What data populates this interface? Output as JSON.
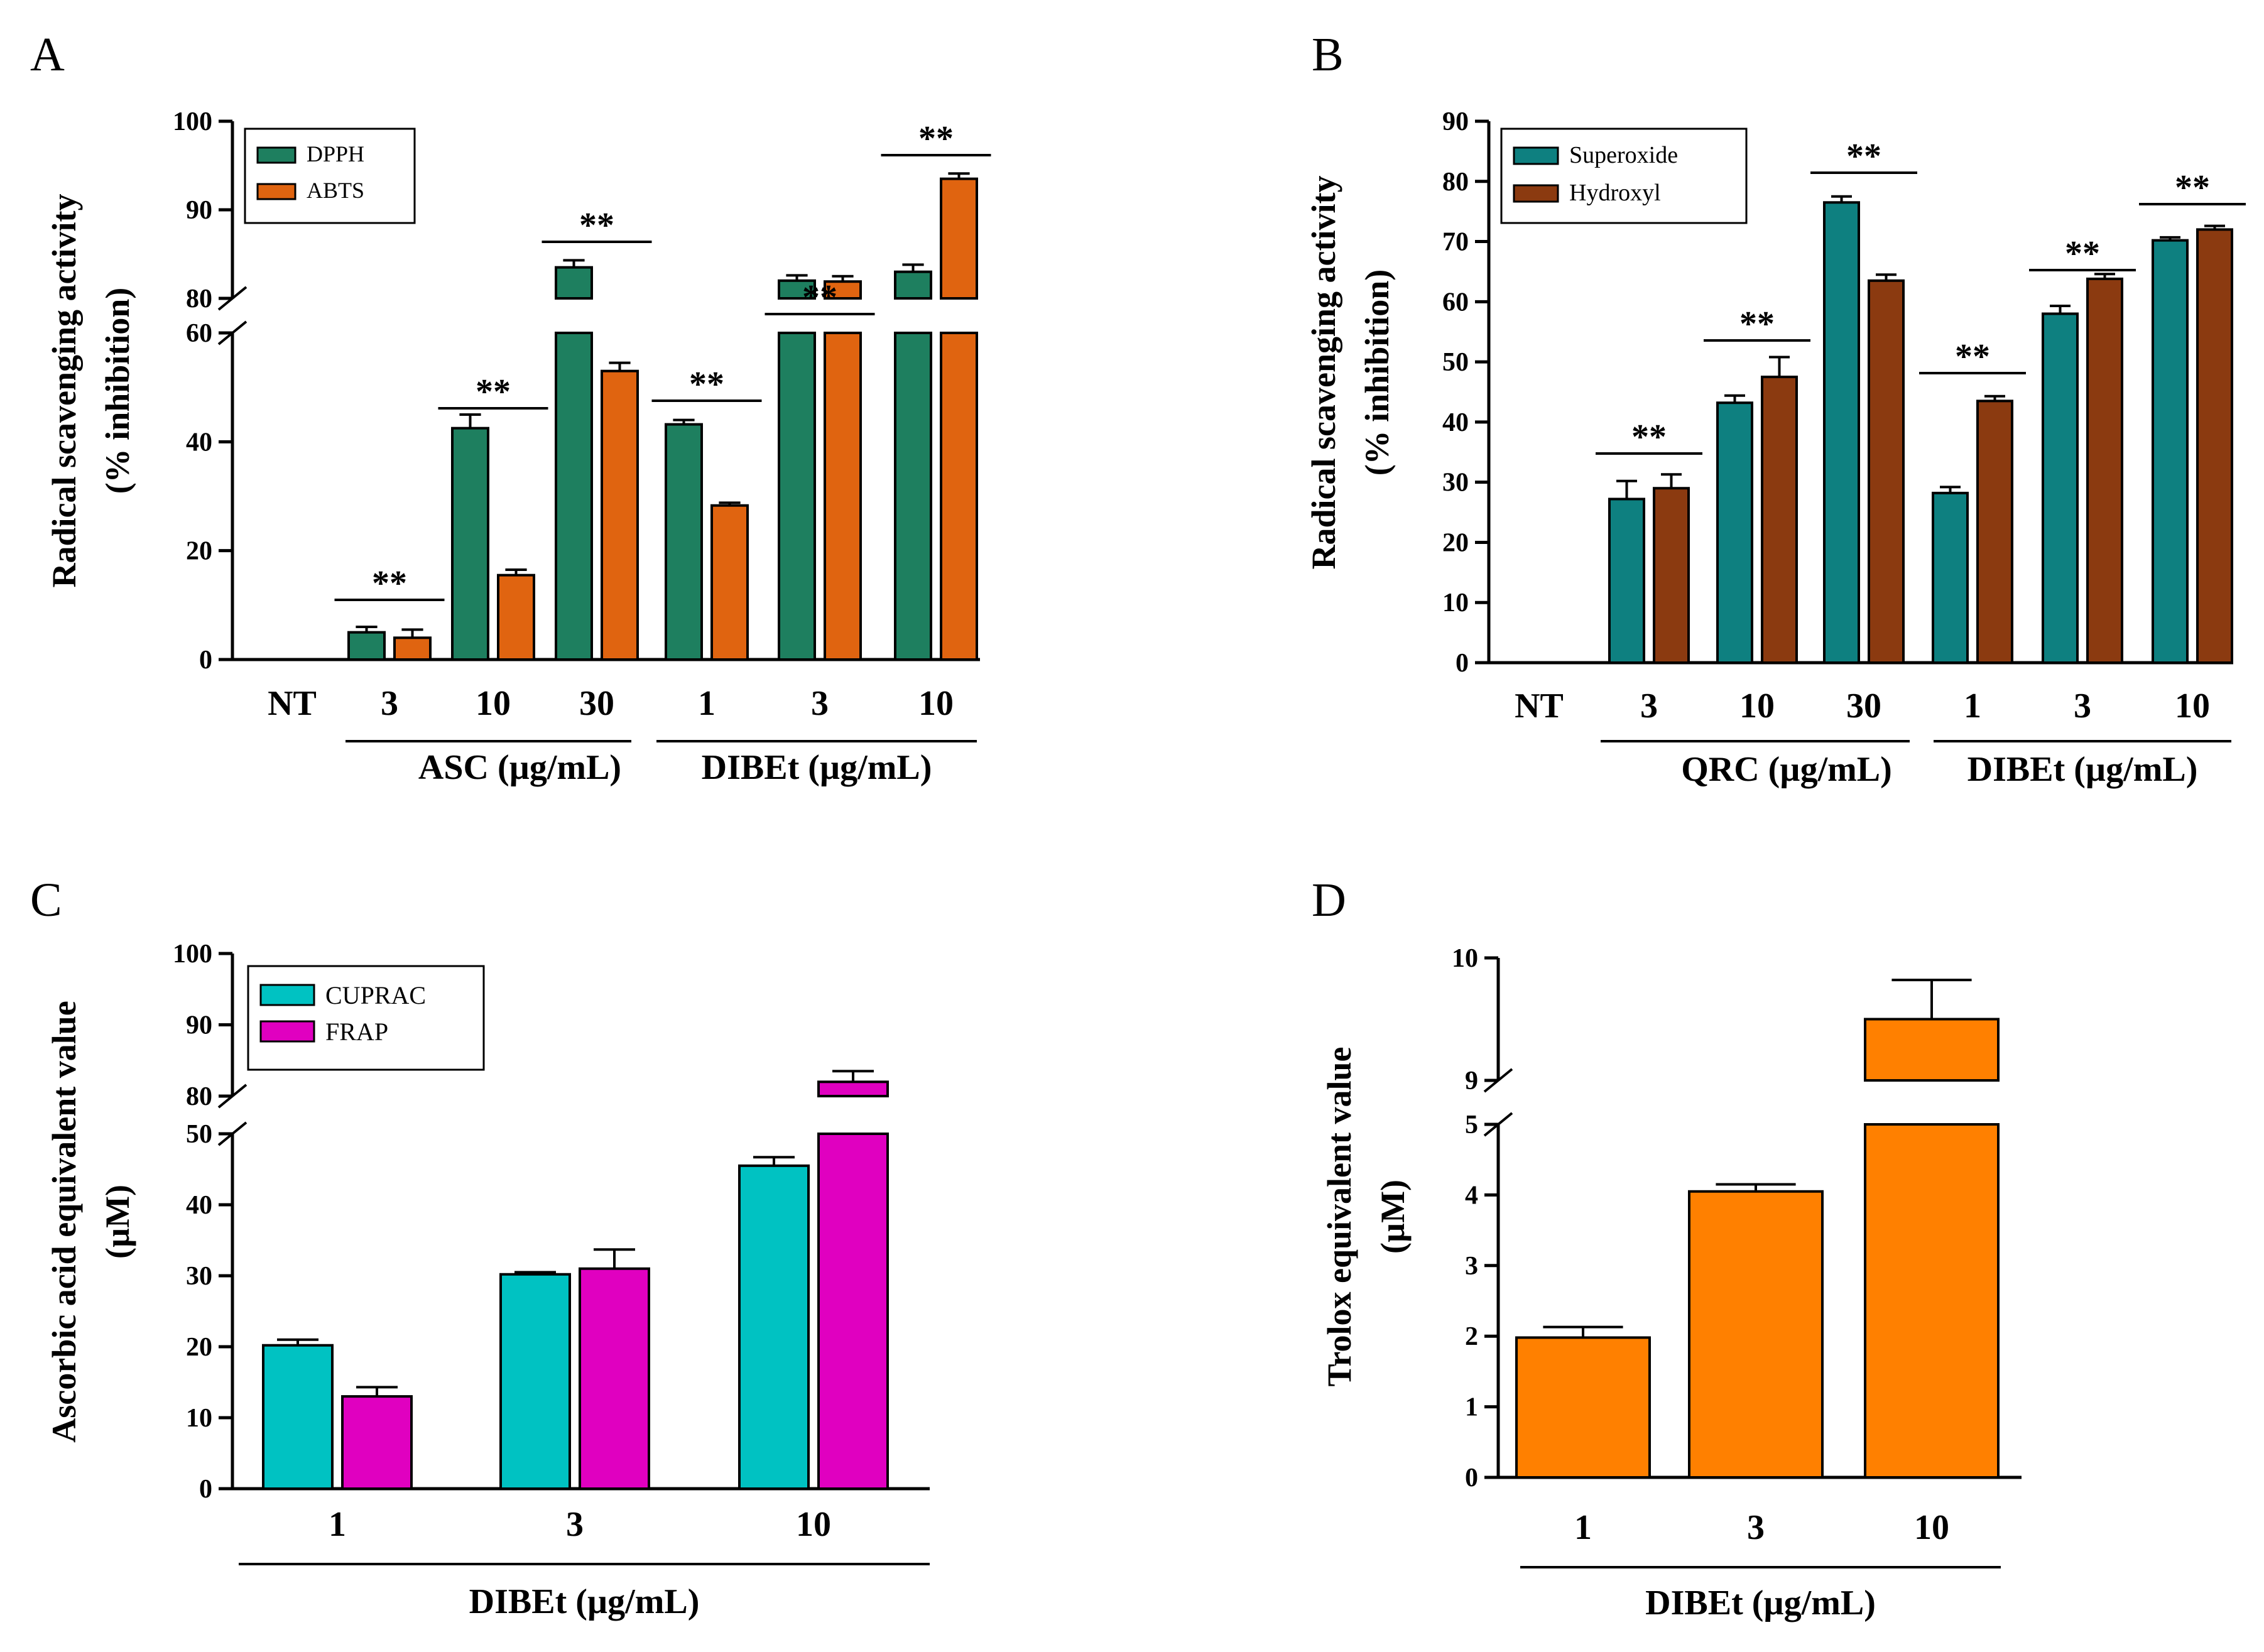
{
  "panels": [
    {
      "letter": "A",
      "chart_data": {
        "type": "bar",
        "categories": [
          "NT",
          "3",
          "10",
          "30",
          "1",
          "3",
          "10"
        ],
        "groups": [
          {
            "label": "ASC (µg/mL)",
            "categories": [
              "3",
              "10",
              "30"
            ]
          },
          {
            "label": "DIBEt (µg/mL)",
            "categories": [
              "1",
              "3",
              "10"
            ]
          }
        ],
        "series": [
          {
            "name": "DPPH",
            "color": "#1e7f5f",
            "values": [
              0,
              5.0,
              42.5,
              83.5,
              43.2,
              82.0,
              83.0
            ],
            "errors": [
              0,
              1.0,
              2.5,
              0.8,
              0.8,
              0.6,
              0.8
            ]
          },
          {
            "name": "ABTS",
            "color": "#e06410",
            "values": [
              0,
              4.0,
              15.5,
              53.0,
              28.3,
              81.9,
              93.5
            ],
            "errors": [
              0,
              1.5,
              1.0,
              1.5,
              0.5,
              0.6,
              0.6
            ]
          }
        ],
        "ylabel_line1": "Radical scavenging activity",
        "ylabel_line2": "(% inhibition)",
        "ylim": [
          0,
          100
        ],
        "axis_break": [
          60,
          80
        ],
        "yticks": [
          "0",
          "20",
          "40",
          "60",
          "80",
          "90",
          "100"
        ],
        "significance": [
          "**",
          "**",
          "**",
          "**",
          "**",
          "**"
        ],
        "legend_position": "top-left"
      }
    },
    {
      "letter": "B",
      "chart_data": {
        "type": "bar",
        "categories": [
          "NT",
          "3",
          "10",
          "30",
          "1",
          "3",
          "10"
        ],
        "groups": [
          {
            "label": "QRC (µg/mL)",
            "categories": [
              "3",
              "10",
              "30"
            ]
          },
          {
            "label": "DIBEt (µg/mL)",
            "categories": [
              "1",
              "3",
              "10"
            ]
          }
        ],
        "series": [
          {
            "name": "Superoxide",
            "color": "#0e8080",
            "values": [
              0,
              27.2,
              43.2,
              76.5,
              28.2,
              58.0,
              70.2
            ],
            "errors": [
              0,
              3.0,
              1.2,
              1.0,
              1.0,
              1.3,
              0.5
            ]
          },
          {
            "name": "Hydroxyl",
            "color": "#8b3a10",
            "values": [
              0,
              29.0,
              47.5,
              63.5,
              43.5,
              63.8,
              72.0
            ],
            "errors": [
              0,
              2.3,
              3.3,
              1.0,
              0.8,
              0.8,
              0.6
            ]
          }
        ],
        "ylabel_line1": "Radical scavenging activity",
        "ylabel_line2": "(% inhibition)",
        "ylim": [
          0,
          90
        ],
        "yticks": [
          "0",
          "10",
          "20",
          "30",
          "40",
          "50",
          "60",
          "70",
          "80",
          "90"
        ],
        "significance": [
          "**",
          "**",
          "**",
          "**",
          "**",
          "**"
        ],
        "legend_position": "top-left"
      }
    },
    {
      "letter": "C",
      "chart_data": {
        "type": "bar",
        "categories": [
          "1",
          "3",
          "10"
        ],
        "groups": [
          {
            "label": "DIBEt (µg/mL)",
            "categories": [
              "1",
              "3",
              "10"
            ]
          }
        ],
        "series": [
          {
            "name": "CUPRAC",
            "color": "#00c2c2",
            "values": [
              20.2,
              30.2,
              45.5
            ],
            "errors": [
              0.8,
              0.3,
              1.2
            ]
          },
          {
            "name": "FRAP",
            "color": "#e000c0",
            "values": [
              13.0,
              31.0,
              82.0
            ],
            "errors": [
              1.3,
              2.7,
              1.5
            ]
          }
        ],
        "ylabel_line1": "Ascorbic acid equivalent value",
        "ylabel_line2": "(µM)",
        "ylim": [
          0,
          100
        ],
        "axis_break": [
          50,
          80
        ],
        "yticks": [
          "0",
          "10",
          "20",
          "30",
          "40",
          "50",
          "80",
          "90",
          "100"
        ],
        "legend_position": "top-left"
      }
    },
    {
      "letter": "D",
      "chart_data": {
        "type": "bar",
        "categories": [
          "1",
          "3",
          "10"
        ],
        "groups": [
          {
            "label": "DIBEt (µg/mL)",
            "categories": [
              "1",
              "3",
              "10"
            ]
          }
        ],
        "series": [
          {
            "name": "Trolox",
            "color": "#ff8000",
            "values": [
              1.98,
              4.05,
              9.5
            ],
            "errors": [
              0.15,
              0.1,
              0.32
            ]
          }
        ],
        "ylabel_line1": "Trolox equivalent value",
        "ylabel_line2": "(µM)",
        "ylim": [
          0,
          10
        ],
        "axis_break": [
          5,
          9
        ],
        "yticks": [
          "0",
          "1",
          "2",
          "3",
          "4",
          "5",
          "9",
          "10"
        ]
      }
    }
  ]
}
